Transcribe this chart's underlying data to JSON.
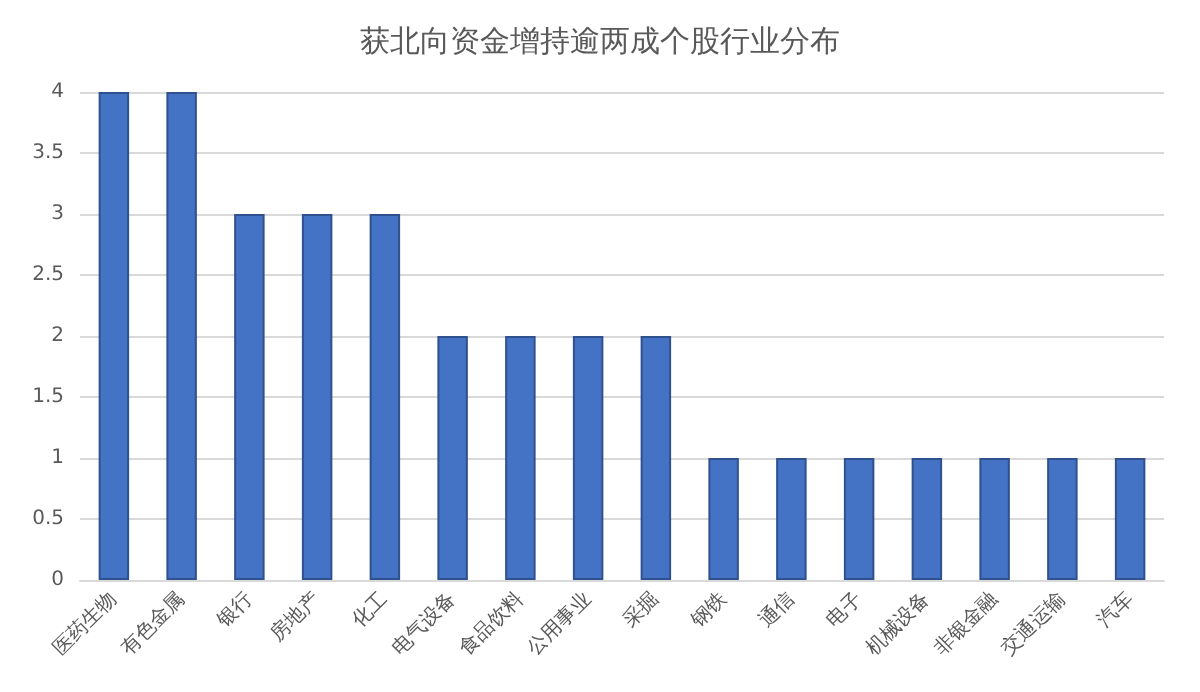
{
  "chart_data": {
    "type": "bar",
    "title": "获北向资金增持逾两成个股行业分布",
    "categories": [
      "医药生物",
      "有色金属",
      "银行",
      "房地产",
      "化工",
      "电气设备",
      "食品饮料",
      "公用事业",
      "采掘",
      "钢铁",
      "通信",
      "电子",
      "机械设备",
      "非银金融",
      "交通运输",
      "汽车"
    ],
    "values": [
      4,
      4,
      3,
      3,
      3,
      2,
      2,
      2,
      2,
      1,
      1,
      1,
      1,
      1,
      1,
      1
    ],
    "color": "#4472c4",
    "ylim": [
      0,
      4
    ],
    "yticks": [
      0,
      0.5,
      1,
      1.5,
      2,
      2.5,
      3,
      3.5,
      4
    ],
    "grid": true
  }
}
